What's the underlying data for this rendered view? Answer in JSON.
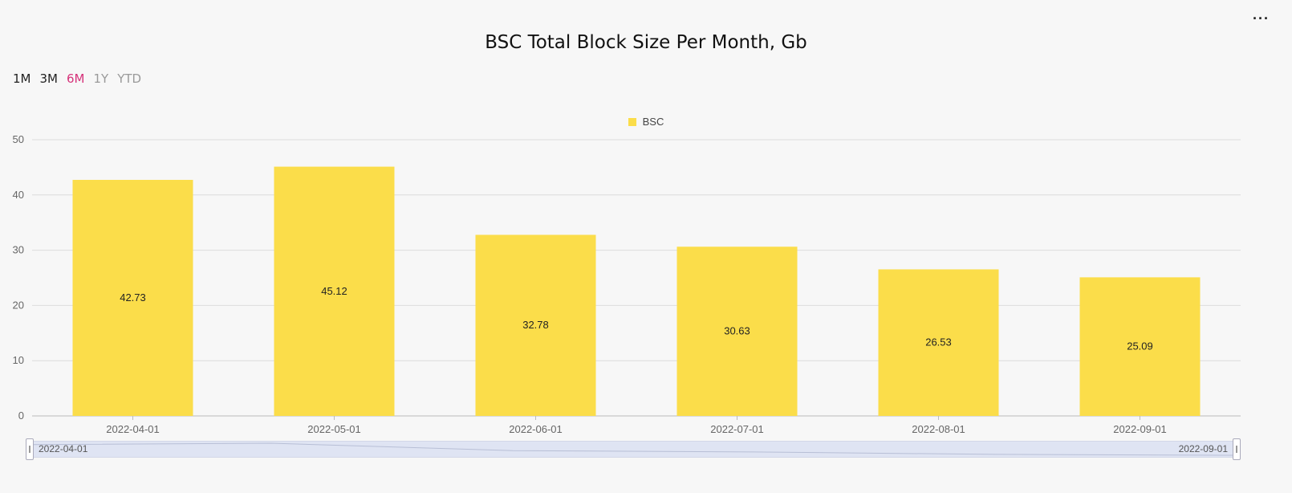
{
  "header": {
    "title": "BSC Total Block Size Per Month, Gb",
    "more_label": "···"
  },
  "range_selector": [
    {
      "label": "1M",
      "state": "normal"
    },
    {
      "label": "3M",
      "state": "normal"
    },
    {
      "label": "6M",
      "state": "active"
    },
    {
      "label": "1Y",
      "state": "muted"
    },
    {
      "label": "YTD",
      "state": "muted"
    }
  ],
  "zoom": {
    "start_label": "2022-04-01",
    "end_label": "2022-09-01"
  },
  "colors": {
    "bar": "#fbdd4a",
    "active": "#d6337a",
    "grid": "#dcdcdc"
  },
  "chart_data": {
    "type": "bar",
    "title": "BSC Total Block Size Per Month, Gb",
    "categories": [
      "2022-04-01",
      "2022-05-01",
      "2022-06-01",
      "2022-07-01",
      "2022-08-01",
      "2022-09-01"
    ],
    "series": [
      {
        "name": "BSC",
        "color": "#fbdd4a",
        "values": [
          42.73,
          45.12,
          32.78,
          30.63,
          26.53,
          25.09
        ]
      }
    ],
    "ylim": [
      0,
      50
    ],
    "yticks": [
      0,
      10,
      20,
      30,
      40,
      50
    ],
    "grid": true,
    "legend_position": "top-center",
    "data_labels": true
  }
}
